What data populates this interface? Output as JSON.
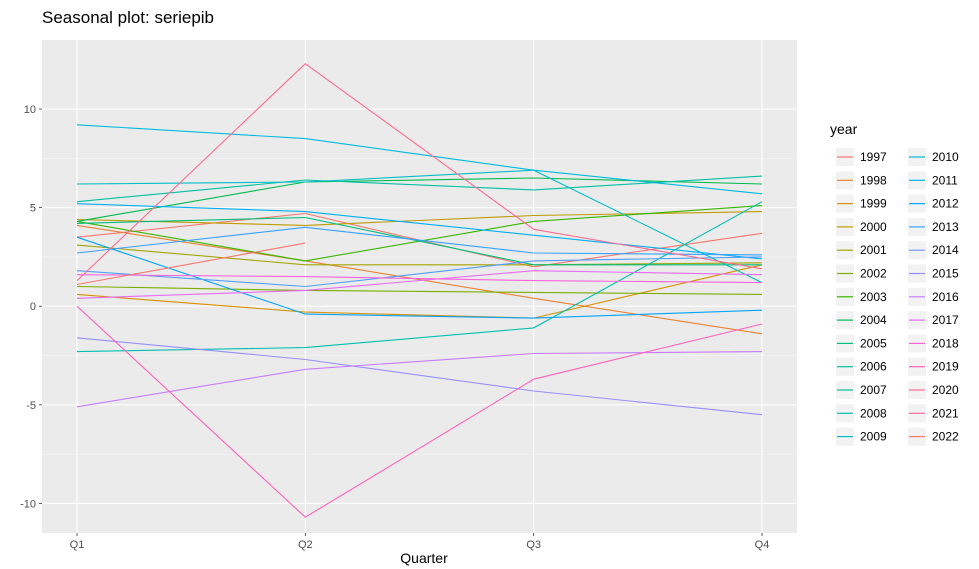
{
  "chart_data": {
    "type": "line",
    "title": "Seasonal plot: seriepib",
    "xlabel": "Quarter",
    "ylabel": "",
    "categories": [
      "Q1",
      "Q2",
      "Q3",
      "Q4"
    ],
    "ylim": [
      -11.5,
      13.5
    ],
    "yticks": [
      -10,
      -5,
      0,
      5,
      10
    ],
    "grid": true,
    "legend_title": "year",
    "legend_position": "right",
    "series": [
      {
        "name": "1997",
        "color": "#F8766D",
        "values": [
          3.5,
          4.7,
          2.0,
          3.7
        ]
      },
      {
        "name": "1998",
        "color": "#EA8331",
        "values": [
          4.1,
          2.3,
          0.4,
          -1.4
        ]
      },
      {
        "name": "1999",
        "color": "#D89000",
        "values": [
          0.6,
          -0.3,
          -0.6,
          2.1
        ]
      },
      {
        "name": "2000",
        "color": "#C09B00",
        "values": [
          4.4,
          4.1,
          4.6,
          4.8
        ]
      },
      {
        "name": "2001",
        "color": "#A3A500",
        "values": [
          3.1,
          2.1,
          2.1,
          2.2
        ]
      },
      {
        "name": "2002",
        "color": "#7CAE00",
        "values": [
          1.0,
          0.8,
          0.7,
          0.6
        ]
      },
      {
        "name": "2003",
        "color": "#39B600",
        "values": [
          4.3,
          2.3,
          4.3,
          5.1
        ]
      },
      {
        "name": "2004",
        "color": "#00BB4E",
        "values": [
          4.3,
          6.3,
          6.5,
          6.2
        ]
      },
      {
        "name": "2005",
        "color": "#00BF7D",
        "values": [
          4.2,
          4.5,
          2.1,
          2.1
        ]
      },
      {
        "name": "2006",
        "color": "#00C1A3",
        "values": [
          5.3,
          6.4,
          5.9,
          6.6
        ]
      },
      {
        "name": "2007",
        "color": "#00BFC4",
        "values": [
          6.2,
          6.3,
          6.9,
          1.2
        ]
      },
      {
        "name": "2008",
        "color": "#00BAE0",
        "values": [
          9.2,
          8.5,
          6.9,
          5.7
        ]
      },
      {
        "name": "2009",
        "color": "#00B0F6",
        "values": [
          5.2,
          4.8,
          3.6,
          2.4
        ]
      },
      {
        "name": "2010",
        "color": "#35A2FF",
        "values": [
          2.7,
          4.0,
          2.7,
          2.6
        ]
      },
      {
        "name": "2011",
        "color": "#00C0AF",
        "values": [
          -2.3,
          -2.1,
          -1.1,
          5.3
        ]
      },
      {
        "name": "2012",
        "color": "#00A5FF",
        "values": [
          3.5,
          -0.4,
          -0.6,
          -0.2
        ]
      },
      {
        "name": "2013",
        "color": "#529EFF",
        "values": [
          1.8,
          1.0,
          2.3,
          2.5
        ]
      },
      {
        "name": "2014",
        "color": "#9590FF",
        "values": [
          -1.6,
          -2.7,
          -4.3,
          -5.5
        ]
      },
      {
        "name": "2015",
        "color": "#C77CFF",
        "values": [
          -5.1,
          -3.2,
          -2.4,
          -2.3
        ]
      },
      {
        "name": "2016",
        "color": "#E76BF3",
        "values": [
          0.4,
          0.8,
          1.8,
          1.6
        ]
      },
      {
        "name": "2017",
        "color": "#FA62DB",
        "values": [
          1.6,
          1.5,
          1.3,
          1.2
        ]
      },
      {
        "name": "2018",
        "color": "#FF62BC",
        "values": [
          0.0,
          -10.7,
          -3.7,
          -0.9
        ]
      },
      {
        "name": "2019",
        "color": "#FF6C91",
        "values": [
          1.3,
          12.3,
          3.9,
          1.9
        ]
      },
      {
        "name": "2020",
        "color": "#F8766D",
        "values": [
          1.1,
          3.2,
          null,
          null
        ]
      }
    ],
    "legend_columns": [
      [
        {
          "label": "1997",
          "color": "#F8766D"
        },
        {
          "label": "1998",
          "color": "#EA8331"
        },
        {
          "label": "1999",
          "color": "#D89000"
        },
        {
          "label": "2000",
          "color": "#C09B00"
        },
        {
          "label": "2001",
          "color": "#A3A500"
        },
        {
          "label": "2002",
          "color": "#7CAE00"
        },
        {
          "label": "2003",
          "color": "#39B600"
        },
        {
          "label": "2004",
          "color": "#00BB4E"
        },
        {
          "label": "2005",
          "color": "#00BF7D"
        },
        {
          "label": "2006",
          "color": "#00C1A3"
        },
        {
          "label": "2007",
          "color": "#00C19A"
        },
        {
          "label": "2008",
          "color": "#00BFB0"
        },
        {
          "label": "2009",
          "color": "#00BFC4"
        }
      ],
      [
        {
          "label": "2010",
          "color": "#00BBDA"
        },
        {
          "label": "2011",
          "color": "#00B4EF"
        },
        {
          "label": "2012",
          "color": "#00A9FF"
        },
        {
          "label": "2013",
          "color": "#35A2FF"
        },
        {
          "label": "2014",
          "color": "#7997FF"
        },
        {
          "label": "2015",
          "color": "#9590FF"
        },
        {
          "label": "2016",
          "color": "#C77CFF"
        },
        {
          "label": "2017",
          "color": "#E76BF3"
        },
        {
          "label": "2018",
          "color": "#FA62DB"
        },
        {
          "label": "2019",
          "color": "#FF62BC"
        },
        {
          "label": "2020",
          "color": "#FF6C91"
        },
        {
          "label": "2021",
          "color": "#FF6A98"
        },
        {
          "label": "2022",
          "color": "#F8766D"
        }
      ]
    ]
  }
}
